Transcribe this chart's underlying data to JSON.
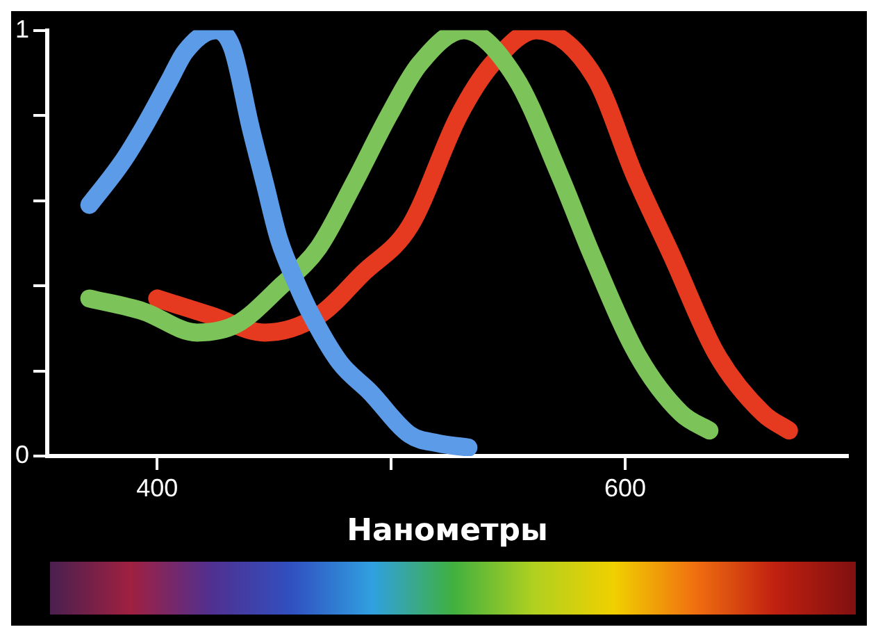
{
  "chart_data": {
    "type": "line",
    "xlabel": "Нанометры",
    "xlim": [
      353,
      695
    ],
    "xticks": [
      400,
      {
        "value": 500,
        "label": null
      },
      600
    ],
    "ylim": [
      0,
      1
    ],
    "yticks": [
      0,
      {
        "value": 0.2,
        "label": null
      },
      {
        "value": 0.4,
        "label": null
      },
      {
        "value": 0.6,
        "label": null
      },
      {
        "value": 0.8,
        "label": null
      },
      1
    ],
    "grid": false,
    "legend": false,
    "marker": "none",
    "line_style": "solid",
    "series": [
      {
        "color": "#5b9be8",
        "x": [
          371,
          385,
          394,
          405,
          412,
          425,
          432,
          440,
          446,
          452,
          460,
          466,
          478,
          491,
          508,
          520,
          533
        ],
        "values": [
          0.59,
          0.69,
          0.77,
          0.88,
          0.95,
          1.0,
          0.96,
          0.77,
          0.64,
          0.51,
          0.4,
          0.33,
          0.22,
          0.15,
          0.05,
          0.03,
          0.02
        ]
      },
      {
        "color": "#7cc45a",
        "x": [
          371,
          394,
          417,
          434,
          453,
          469,
          484,
          499,
          512,
          531,
          553,
          572,
          586,
          605,
          624,
          636
        ],
        "values": [
          0.37,
          0.34,
          0.29,
          0.31,
          0.4,
          0.49,
          0.64,
          0.8,
          0.92,
          1.0,
          0.89,
          0.66,
          0.47,
          0.24,
          0.1,
          0.06
        ]
      },
      {
        "color": "#e53a1f",
        "x": [
          400,
          423,
          446,
          469,
          488,
          508,
          529,
          543,
          562,
          587,
          604,
          620,
          639,
          659,
          670
        ],
        "values": [
          0.37,
          0.33,
          0.29,
          0.33,
          0.43,
          0.54,
          0.8,
          0.92,
          1.0,
          0.89,
          0.66,
          0.47,
          0.24,
          0.1,
          0.06
        ]
      }
    ]
  }
}
